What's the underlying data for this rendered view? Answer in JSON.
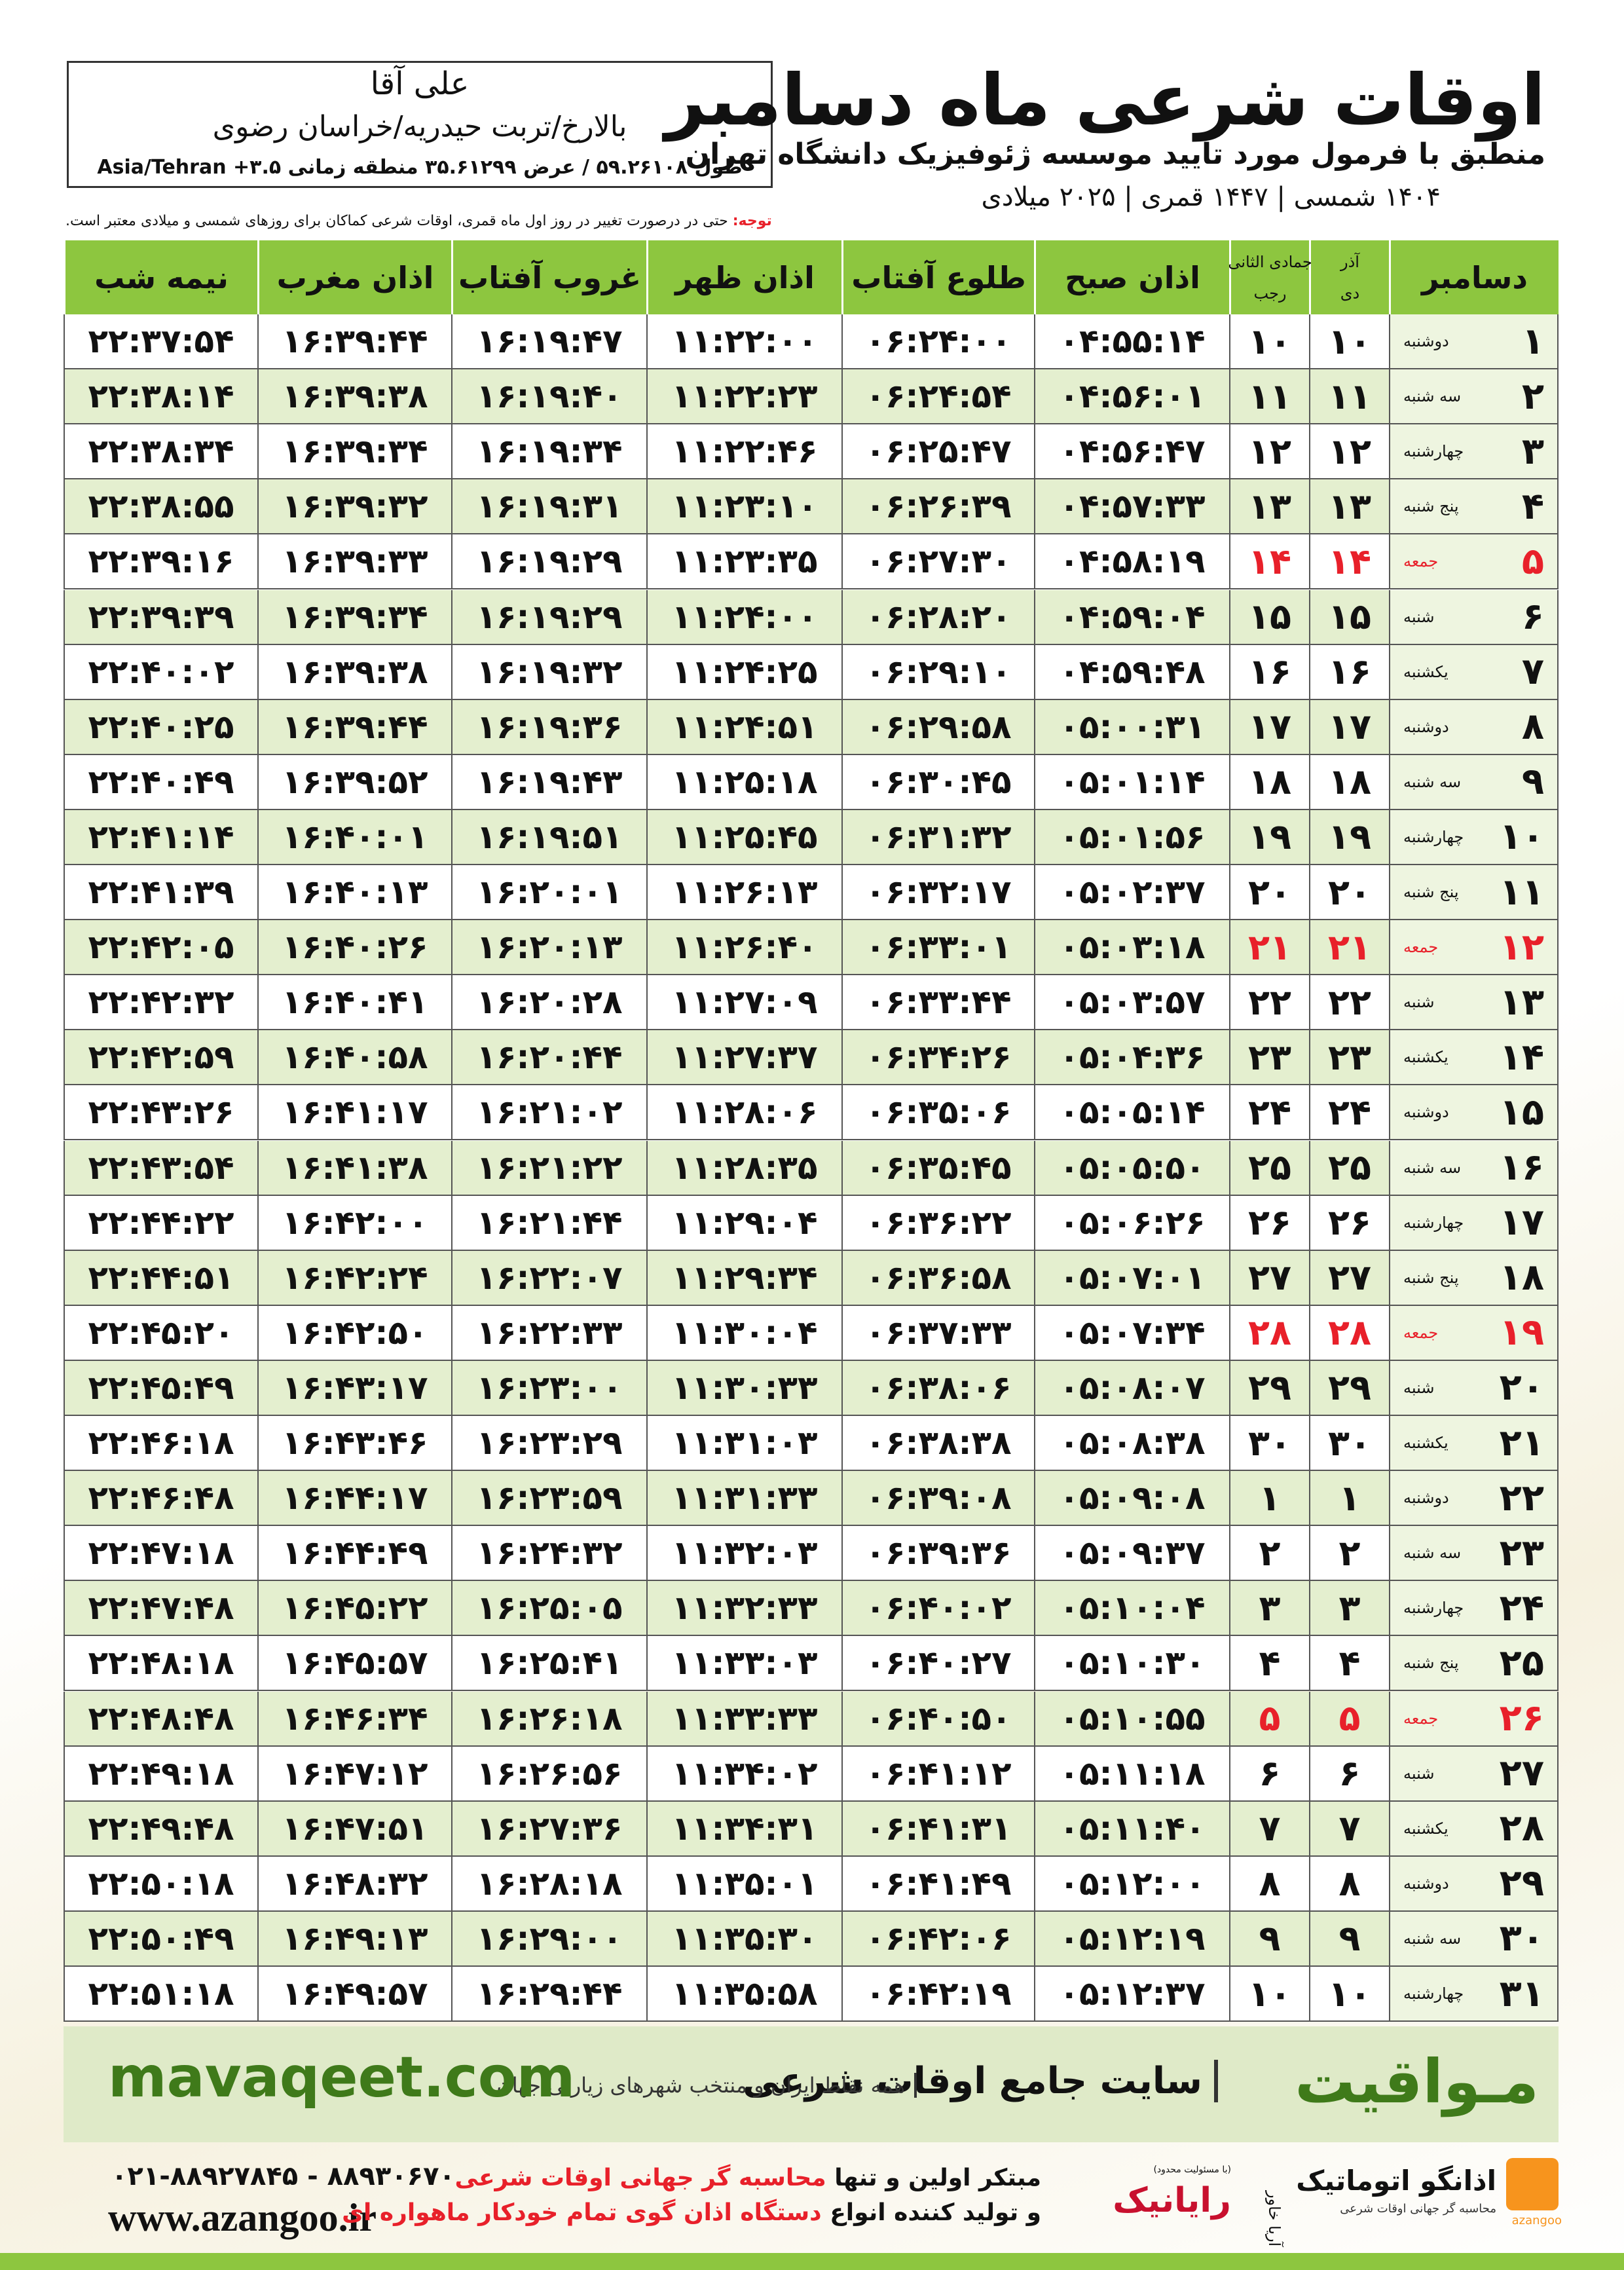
{
  "header": {
    "title": "اوقات شرعی ماه دسامبر",
    "subtitle": "منطبق با فرمول مورد تایید موسسه ژئوفیزیک دانشگاه تهران",
    "years": "۱۴۰۴ شمسی | ۱۴۴۷ قمری | ۲۰۲۵ میلادی",
    "name": "علی آقا",
    "location": "بالارخ/تربت حیدریه/خراسان رضوی",
    "coordinates": "طول ۵۹.۲۶۱۰۸ / عرض ۳۵.۶۱۲۹۹ منطقه زمانی ۳.۵+ Asia/Tehran"
  },
  "note": {
    "label": "توجه:",
    "text": "حتی در درصورت تغییر در روز اول ماه قمری، اوقات شرعی کماکان برای روزهای شمسی و میلادی معتبر است."
  },
  "table": {
    "holiday_color": "#e8202a",
    "columns": [
      {
        "label": "دسامبر"
      },
      {
        "top": "آذر",
        "bottom": "دی"
      },
      {
        "top": "جمادی الثانی",
        "bottom": "رجب"
      },
      {
        "label": "اذان صبح"
      },
      {
        "label": "طلوع آفتاب"
      },
      {
        "label": "اذان ظهر"
      },
      {
        "label": "غروب آفتاب"
      },
      {
        "label": "اذان مغرب"
      },
      {
        "label": "نیمه شب"
      }
    ],
    "rows": [
      {
        "day": "۱",
        "weekday": "دوشنبه",
        "solar": "۱۰",
        "lunar": "۱۰",
        "times": [
          "۰۴:۵۵:۱۴",
          "۰۶:۲۴:۰۰",
          "۱۱:۲۲:۰۰",
          "۱۶:۱۹:۴۷",
          "۱۶:۳۹:۴۴",
          "۲۲:۳۷:۵۴"
        ]
      },
      {
        "day": "۲",
        "weekday": "سه شنبه",
        "solar": "۱۱",
        "lunar": "۱۱",
        "times": [
          "۰۴:۵۶:۰۱",
          "۰۶:۲۴:۵۴",
          "۱۱:۲۲:۲۳",
          "۱۶:۱۹:۴۰",
          "۱۶:۳۹:۳۸",
          "۲۲:۳۸:۱۴"
        ]
      },
      {
        "day": "۳",
        "weekday": "چهارشنبه",
        "solar": "۱۲",
        "lunar": "۱۲",
        "times": [
          "۰۴:۵۶:۴۷",
          "۰۶:۲۵:۴۷",
          "۱۱:۲۲:۴۶",
          "۱۶:۱۹:۳۴",
          "۱۶:۳۹:۳۴",
          "۲۲:۳۸:۳۴"
        ]
      },
      {
        "day": "۴",
        "weekday": "پنج شنبه",
        "solar": "۱۳",
        "lunar": "۱۳",
        "times": [
          "۰۴:۵۷:۳۳",
          "۰۶:۲۶:۳۹",
          "۱۱:۲۳:۱۰",
          "۱۶:۱۹:۳۱",
          "۱۶:۳۹:۳۲",
          "۲۲:۳۸:۵۵"
        ]
      },
      {
        "day": "۵",
        "weekday": "جمعه",
        "solar": "۱۴",
        "lunar": "۱۴",
        "holiday": true,
        "times": [
          "۰۴:۵۸:۱۹",
          "۰۶:۲۷:۳۰",
          "۱۱:۲۳:۳۵",
          "۱۶:۱۹:۲۹",
          "۱۶:۳۹:۳۳",
          "۲۲:۳۹:۱۶"
        ]
      },
      {
        "day": "۶",
        "weekday": "شنبه",
        "solar": "۱۵",
        "lunar": "۱۵",
        "times": [
          "۰۴:۵۹:۰۴",
          "۰۶:۲۸:۲۰",
          "۱۱:۲۴:۰۰",
          "۱۶:۱۹:۲۹",
          "۱۶:۳۹:۳۴",
          "۲۲:۳۹:۳۹"
        ]
      },
      {
        "day": "۷",
        "weekday": "یکشنبه",
        "solar": "۱۶",
        "lunar": "۱۶",
        "times": [
          "۰۴:۵۹:۴۸",
          "۰۶:۲۹:۱۰",
          "۱۱:۲۴:۲۵",
          "۱۶:۱۹:۳۲",
          "۱۶:۳۹:۳۸",
          "۲۲:۴۰:۰۲"
        ]
      },
      {
        "day": "۸",
        "weekday": "دوشنبه",
        "solar": "۱۷",
        "lunar": "۱۷",
        "times": [
          "۰۵:۰۰:۳۱",
          "۰۶:۲۹:۵۸",
          "۱۱:۲۴:۵۱",
          "۱۶:۱۹:۳۶",
          "۱۶:۳۹:۴۴",
          "۲۲:۴۰:۲۵"
        ]
      },
      {
        "day": "۹",
        "weekday": "سه شنبه",
        "solar": "۱۸",
        "lunar": "۱۸",
        "times": [
          "۰۵:۰۱:۱۴",
          "۰۶:۳۰:۴۵",
          "۱۱:۲۵:۱۸",
          "۱۶:۱۹:۴۳",
          "۱۶:۳۹:۵۲",
          "۲۲:۴۰:۴۹"
        ]
      },
      {
        "day": "۱۰",
        "weekday": "چهارشنبه",
        "solar": "۱۹",
        "lunar": "۱۹",
        "times": [
          "۰۵:۰۱:۵۶",
          "۰۶:۳۱:۳۲",
          "۱۱:۲۵:۴۵",
          "۱۶:۱۹:۵۱",
          "۱۶:۴۰:۰۱",
          "۲۲:۴۱:۱۴"
        ]
      },
      {
        "day": "۱۱",
        "weekday": "پنج شنبه",
        "solar": "۲۰",
        "lunar": "۲۰",
        "times": [
          "۰۵:۰۲:۳۷",
          "۰۶:۳۲:۱۷",
          "۱۱:۲۶:۱۳",
          "۱۶:۲۰:۰۱",
          "۱۶:۴۰:۱۳",
          "۲۲:۴۱:۳۹"
        ]
      },
      {
        "day": "۱۲",
        "weekday": "جمعه",
        "solar": "۲۱",
        "lunar": "۲۱",
        "holiday": true,
        "times": [
          "۰۵:۰۳:۱۸",
          "۰۶:۳۳:۰۱",
          "۱۱:۲۶:۴۰",
          "۱۶:۲۰:۱۳",
          "۱۶:۴۰:۲۶",
          "۲۲:۴۲:۰۵"
        ]
      },
      {
        "day": "۱۳",
        "weekday": "شنبه",
        "solar": "۲۲",
        "lunar": "۲۲",
        "times": [
          "۰۵:۰۳:۵۷",
          "۰۶:۳۳:۴۴",
          "۱۱:۲۷:۰۹",
          "۱۶:۲۰:۲۸",
          "۱۶:۴۰:۴۱",
          "۲۲:۴۲:۳۲"
        ]
      },
      {
        "day": "۱۴",
        "weekday": "یکشنبه",
        "solar": "۲۳",
        "lunar": "۲۳",
        "times": [
          "۰۵:۰۴:۳۶",
          "۰۶:۳۴:۲۶",
          "۱۱:۲۷:۳۷",
          "۱۶:۲۰:۴۴",
          "۱۶:۴۰:۵۸",
          "۲۲:۴۲:۵۹"
        ]
      },
      {
        "day": "۱۵",
        "weekday": "دوشنبه",
        "solar": "۲۴",
        "lunar": "۲۴",
        "times": [
          "۰۵:۰۵:۱۴",
          "۰۶:۳۵:۰۶",
          "۱۱:۲۸:۰۶",
          "۱۶:۲۱:۰۲",
          "۱۶:۴۱:۱۷",
          "۲۲:۴۳:۲۶"
        ]
      },
      {
        "day": "۱۶",
        "weekday": "سه شنبه",
        "solar": "۲۵",
        "lunar": "۲۵",
        "times": [
          "۰۵:۰۵:۵۰",
          "۰۶:۳۵:۴۵",
          "۱۱:۲۸:۳۵",
          "۱۶:۲۱:۲۲",
          "۱۶:۴۱:۳۸",
          "۲۲:۴۳:۵۴"
        ]
      },
      {
        "day": "۱۷",
        "weekday": "چهارشنبه",
        "solar": "۲۶",
        "lunar": "۲۶",
        "times": [
          "۰۵:۰۶:۲۶",
          "۰۶:۳۶:۲۲",
          "۱۱:۲۹:۰۴",
          "۱۶:۲۱:۴۴",
          "۱۶:۴۲:۰۰",
          "۲۲:۴۴:۲۲"
        ]
      },
      {
        "day": "۱۸",
        "weekday": "پنج شنبه",
        "solar": "۲۷",
        "lunar": "۲۷",
        "times": [
          "۰۵:۰۷:۰۱",
          "۰۶:۳۶:۵۸",
          "۱۱:۲۹:۳۴",
          "۱۶:۲۲:۰۷",
          "۱۶:۴۲:۲۴",
          "۲۲:۴۴:۵۱"
        ]
      },
      {
        "day": "۱۹",
        "weekday": "جمعه",
        "solar": "۲۸",
        "lunar": "۲۸",
        "holiday": true,
        "times": [
          "۰۵:۰۷:۳۴",
          "۰۶:۳۷:۳۳",
          "۱۱:۳۰:۰۴",
          "۱۶:۲۲:۳۳",
          "۱۶:۴۲:۵۰",
          "۲۲:۴۵:۲۰"
        ]
      },
      {
        "day": "۲۰",
        "weekday": "شنبه",
        "solar": "۲۹",
        "lunar": "۲۹",
        "times": [
          "۰۵:۰۸:۰۷",
          "۰۶:۳۸:۰۶",
          "۱۱:۳۰:۳۳",
          "۱۶:۲۳:۰۰",
          "۱۶:۴۳:۱۷",
          "۲۲:۴۵:۴۹"
        ]
      },
      {
        "day": "۲۱",
        "weekday": "یکشنبه",
        "solar": "۳۰",
        "lunar": "۳۰",
        "times": [
          "۰۵:۰۸:۳۸",
          "۰۶:۳۸:۳۸",
          "۱۱:۳۱:۰۳",
          "۱۶:۲۳:۲۹",
          "۱۶:۴۳:۴۶",
          "۲۲:۴۶:۱۸"
        ]
      },
      {
        "day": "۲۲",
        "weekday": "دوشنبه",
        "solar": "۱",
        "lunar": "۱",
        "times": [
          "۰۵:۰۹:۰۸",
          "۰۶:۳۹:۰۸",
          "۱۱:۳۱:۳۳",
          "۱۶:۲۳:۵۹",
          "۱۶:۴۴:۱۷",
          "۲۲:۴۶:۴۸"
        ]
      },
      {
        "day": "۲۳",
        "weekday": "سه شنبه",
        "solar": "۲",
        "lunar": "۲",
        "times": [
          "۰۵:۰۹:۳۷",
          "۰۶:۳۹:۳۶",
          "۱۱:۳۲:۰۳",
          "۱۶:۲۴:۳۲",
          "۱۶:۴۴:۴۹",
          "۲۲:۴۷:۱۸"
        ]
      },
      {
        "day": "۲۴",
        "weekday": "چهارشنبه",
        "solar": "۳",
        "lunar": "۳",
        "times": [
          "۰۵:۱۰:۰۴",
          "۰۶:۴۰:۰۲",
          "۱۱:۳۲:۳۳",
          "۱۶:۲۵:۰۵",
          "۱۶:۴۵:۲۲",
          "۲۲:۴۷:۴۸"
        ]
      },
      {
        "day": "۲۵",
        "weekday": "پنج شنبه",
        "solar": "۴",
        "lunar": "۴",
        "times": [
          "۰۵:۱۰:۳۰",
          "۰۶:۴۰:۲۷",
          "۱۱:۳۳:۰۳",
          "۱۶:۲۵:۴۱",
          "۱۶:۴۵:۵۷",
          "۲۲:۴۸:۱۸"
        ]
      },
      {
        "day": "۲۶",
        "weekday": "جمعه",
        "solar": "۵",
        "lunar": "۵",
        "holiday": true,
        "times": [
          "۰۵:۱۰:۵۵",
          "۰۶:۴۰:۵۰",
          "۱۱:۳۳:۳۳",
          "۱۶:۲۶:۱۸",
          "۱۶:۴۶:۳۴",
          "۲۲:۴۸:۴۸"
        ]
      },
      {
        "day": "۲۷",
        "weekday": "شنبه",
        "solar": "۶",
        "lunar": "۶",
        "times": [
          "۰۵:۱۱:۱۸",
          "۰۶:۴۱:۱۲",
          "۱۱:۳۴:۰۲",
          "۱۶:۲۶:۵۶",
          "۱۶:۴۷:۱۲",
          "۲۲:۴۹:۱۸"
        ]
      },
      {
        "day": "۲۸",
        "weekday": "یکشنبه",
        "solar": "۷",
        "lunar": "۷",
        "times": [
          "۰۵:۱۱:۴۰",
          "۰۶:۴۱:۳۱",
          "۱۱:۳۴:۳۱",
          "۱۶:۲۷:۳۶",
          "۱۶:۴۷:۵۱",
          "۲۲:۴۹:۴۸"
        ]
      },
      {
        "day": "۲۹",
        "weekday": "دوشنبه",
        "solar": "۸",
        "lunar": "۸",
        "times": [
          "۰۵:۱۲:۰۰",
          "۰۶:۴۱:۴۹",
          "۱۱:۳۵:۰۱",
          "۱۶:۲۸:۱۸",
          "۱۶:۴۸:۳۲",
          "۲۲:۵۰:۱۸"
        ]
      },
      {
        "day": "۳۰",
        "weekday": "سه شنبه",
        "solar": "۹",
        "lunar": "۹",
        "times": [
          "۰۵:۱۲:۱۹",
          "۰۶:۴۲:۰۶",
          "۱۱:۳۵:۳۰",
          "۱۶:۲۹:۰۰",
          "۱۶:۴۹:۱۳",
          "۲۲:۵۰:۴۹"
        ]
      },
      {
        "day": "۳۱",
        "weekday": "چهارشنبه",
        "solar": "۱۰",
        "lunar": "۱۰",
        "times": [
          "۰۵:۱۲:۳۷",
          "۰۶:۴۲:۱۹",
          "۱۱:۳۵:۵۸",
          "۱۶:۲۹:۴۴",
          "۱۶:۴۹:۵۷",
          "۲۲:۵۱:۱۸"
        ]
      }
    ]
  },
  "footer": {
    "logo": "مـواقیت",
    "slogan": "سایت جامع اوقات شرعی",
    "coverage": "همه نقاط ایران و منتخب شهرهای زیارتی جهان",
    "site": "mavaqeet.com"
  },
  "credits": {
    "phone": "۰۲۱-۸۸۹۲۷۸۴۵ - ۸۸۹۳۰۶۷۰",
    "web": "www.azangoo.ir",
    "line1": [
      "مبتکر اولین و تنها",
      "محاسبه گر جهانی اوقات شرعی"
    ],
    "line2": [
      "و تولید کننده انواع",
      "دستگاه اذان گوی تمام خودکار ماهواره ای"
    ],
    "rayanik": "رایانیک",
    "aria": "آریا خاور",
    "ltd": "(با مسئولیت محدود)",
    "azangoo": "اذانگو اتوماتیک",
    "azangoo_sub": "محاسبه گر جهانی اوقات شرعی",
    "azangoo_en": "azangoo"
  }
}
